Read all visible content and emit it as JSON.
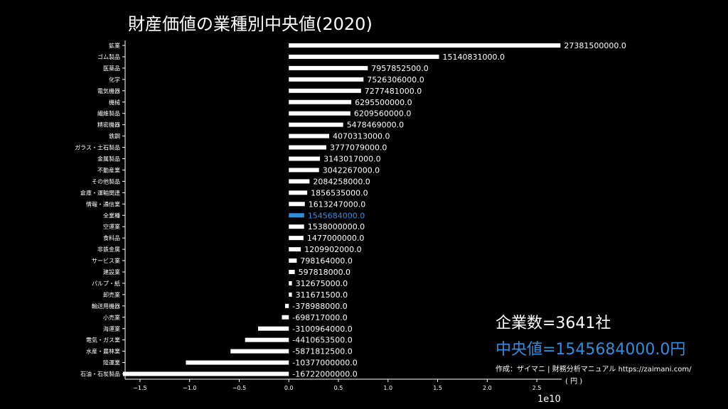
{
  "chart_data": {
    "type": "bar",
    "orientation": "horizontal",
    "title": "財産価値の業種別中央値(2020)",
    "categories": [
      "鉱業",
      "ゴム製品",
      "医薬品",
      "化学",
      "電気機器",
      "機械",
      "繊維製品",
      "精密機器",
      "鉄鋼",
      "ガラス・土石製品",
      "金属製品",
      "不動産業",
      "その他製品",
      "倉庫・運輸関連",
      "情報・通信業",
      "全業種",
      "空運業",
      "食料品",
      "非鉄金属",
      "サービス業",
      "建設業",
      "パルプ・紙",
      "卸売業",
      "輸送用機器",
      "小売業",
      "海運業",
      "電気・ガス業",
      "水産・農林業",
      "陸運業",
      "石油・石炭製品"
    ],
    "values": [
      27381500000.0,
      15140831000.0,
      7957852500.0,
      7526306000.0,
      7277481000.0,
      6295500000.0,
      6209560000.0,
      5478469000.0,
      4070313000.0,
      3777079000.0,
      3143017000.0,
      3042267000.0,
      2084258000.0,
      1856535000.0,
      1613247000.0,
      1545684000.0,
      1538000000.0,
      1477000000.0,
      1209902000.0,
      798164000.0,
      597818000.0,
      312675000.0,
      311671500.0,
      -378988000.0,
      -698717000.0,
      -3100964000.0,
      -4410653500.0,
      -5871812500.0,
      -10377000000.0,
      -16722000000.0
    ],
    "labels": [
      "27381500000.0",
      "15140831000.0",
      "7957852500.0",
      "7526306000.0",
      "7277481000.0",
      "6295500000.0",
      "6209560000.0",
      "5478469000.0",
      "4070313000.0",
      "3777079000.0",
      "3143017000.0",
      "3042267000.0",
      "2084258000.0",
      "1856535000.0",
      "1613247000.0",
      "1545684000.0",
      "1538000000.0",
      "1477000000.0",
      "1209902000.0",
      "798164000.0",
      "597818000.0",
      "312675000.0",
      "311671500.0",
      "-378988000.0",
      "-698717000.0",
      "-3100964000.0",
      "-4410653500.0",
      "-5871812500.0",
      "-10377000000.0",
      "-16722000000.0"
    ],
    "highlight_category": "全業種",
    "xlim": [
      -1.65,
      2.75
    ],
    "xticks": [
      -1.5,
      -1.0,
      -0.5,
      0.0,
      0.5,
      1.0,
      1.5,
      2.0,
      2.5
    ],
    "xtick_labels": [
      "−1.5",
      "−1.0",
      "−0.5",
      "0.0",
      "0.5",
      "1.0",
      "1.5",
      "2.0",
      "2.5"
    ],
    "axis_scale_label": "1e10",
    "scale": 10000000000
  },
  "colors": {
    "bar": "#ffffff",
    "highlight": "#2d8fe0",
    "background": "#000000"
  },
  "stats": {
    "count_text": "企業数=3641社",
    "median_text": "中央値=1545684000.0円"
  },
  "credit": {
    "line1": "作成：ザイマニ | 財務分析マニュアル https://zaimani.com/",
    "line2": "( 円 )"
  }
}
